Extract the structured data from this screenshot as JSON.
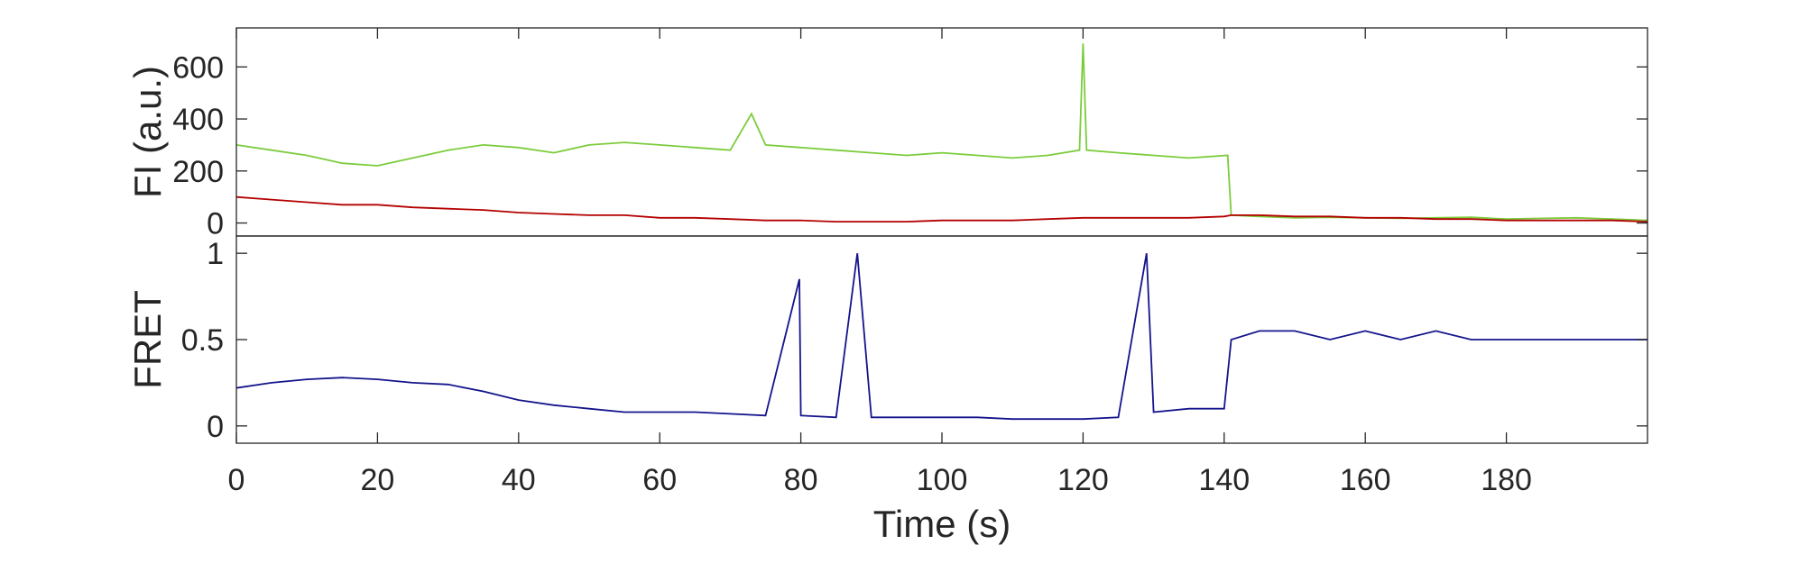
{
  "chart_data": [
    {
      "type": "line",
      "ylabel": "FI (a.u.)",
      "xlim": [
        0,
        200
      ],
      "ylim": [
        -50,
        750
      ],
      "yticks": [
        0,
        200,
        400,
        600
      ],
      "ytick_labels": [
        "0",
        "200",
        "400",
        "600"
      ],
      "grid": false,
      "series": [
        {
          "color": "#7ccc3c",
          "x": [
            0,
            5,
            10,
            15,
            20,
            25,
            30,
            35,
            40,
            45,
            50,
            55,
            60,
            65,
            70,
            73,
            75,
            80,
            85,
            90,
            95,
            100,
            105,
            110,
            115,
            119.5,
            120,
            120.5,
            125,
            130,
            135,
            140.5,
            141,
            145,
            150,
            155,
            160,
            165,
            170,
            175,
            180,
            185,
            190,
            195,
            200
          ],
          "values": [
            300,
            280,
            260,
            230,
            220,
            250,
            280,
            300,
            290,
            270,
            300,
            310,
            300,
            290,
            280,
            420,
            300,
            290,
            280,
            270,
            260,
            270,
            260,
            250,
            260,
            280,
            690,
            280,
            270,
            260,
            250,
            260,
            30,
            25,
            20,
            22,
            20,
            18,
            20,
            22,
            15,
            18,
            20,
            15,
            10
          ]
        },
        {
          "color": "#b40000",
          "x": [
            0,
            5,
            10,
            15,
            20,
            25,
            30,
            35,
            40,
            45,
            50,
            55,
            60,
            65,
            70,
            75,
            80,
            85,
            90,
            95,
            100,
            105,
            110,
            115,
            120,
            125,
            130,
            135,
            140,
            141,
            145,
            150,
            155,
            160,
            165,
            170,
            175,
            180,
            185,
            190,
            195,
            200
          ],
          "values": [
            100,
            90,
            80,
            70,
            70,
            60,
            55,
            50,
            40,
            35,
            30,
            30,
            20,
            20,
            15,
            10,
            10,
            5,
            5,
            5,
            10,
            10,
            10,
            15,
            20,
            20,
            20,
            20,
            25,
            30,
            30,
            25,
            25,
            20,
            20,
            15,
            15,
            10,
            10,
            10,
            10,
            5
          ]
        }
      ]
    },
    {
      "type": "line",
      "xlabel": "Time (s)",
      "ylabel": "FRET",
      "xlim": [
        0,
        200
      ],
      "ylim": [
        -0.1,
        1.1
      ],
      "xticks": [
        0,
        20,
        40,
        60,
        80,
        100,
        120,
        140,
        160,
        180
      ],
      "xtick_labels": [
        "0",
        "20",
        "40",
        "60",
        "80",
        "100",
        "120",
        "140",
        "160",
        "180"
      ],
      "yticks": [
        0,
        0.5,
        1
      ],
      "ytick_labels": [
        "0",
        "0.5",
        "1"
      ],
      "grid": false,
      "series": [
        {
          "color": "#14148c",
          "x": [
            0,
            5,
            10,
            15,
            20,
            25,
            30,
            35,
            40,
            45,
            50,
            55,
            60,
            65,
            70,
            75,
            79.8,
            80,
            85,
            88,
            90,
            95,
            100,
            105,
            110,
            115,
            120,
            125,
            129,
            130,
            135,
            140,
            141,
            145,
            150,
            155,
            160,
            165,
            170,
            175,
            180,
            185,
            190,
            195,
            200
          ],
          "values": [
            0.22,
            0.25,
            0.27,
            0.28,
            0.27,
            0.25,
            0.24,
            0.2,
            0.15,
            0.12,
            0.1,
            0.08,
            0.08,
            0.08,
            0.07,
            0.06,
            0.85,
            0.06,
            0.05,
            1.0,
            0.05,
            0.05,
            0.05,
            0.05,
            0.04,
            0.04,
            0.04,
            0.05,
            1.0,
            0.08,
            0.1,
            0.1,
            0.5,
            0.55,
            0.55,
            0.5,
            0.55,
            0.5,
            0.55,
            0.5,
            0.5,
            0.5,
            0.5,
            0.5,
            0.5
          ]
        }
      ]
    }
  ]
}
